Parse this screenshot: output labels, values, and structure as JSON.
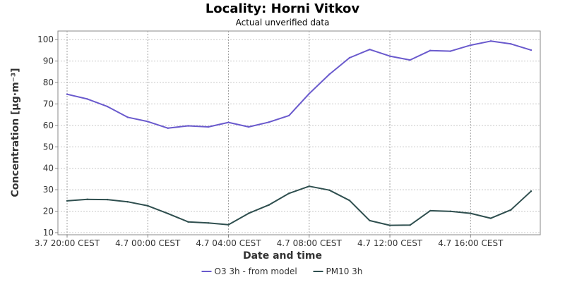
{
  "chart_data": {
    "type": "line",
    "title": "Locality: Horni Vitkov",
    "subtitle": "Actual unverified data",
    "xlabel": "Date and time",
    "ylabel": "Concentration [µg·m⁻³]",
    "ylim": [
      9,
      104
    ],
    "yticks": [
      10,
      20,
      30,
      40,
      50,
      60,
      70,
      80,
      90,
      100
    ],
    "grid": true,
    "legend_position": "bottom",
    "x": [
      "3.7 20:00",
      "3.7 21:00",
      "3.7 22:00",
      "3.7 23:00",
      "4.7 00:00",
      "4.7 01:00",
      "4.7 02:00",
      "4.7 03:00",
      "4.7 04:00",
      "4.7 05:00",
      "4.7 06:00",
      "4.7 07:00",
      "4.7 08:00",
      "4.7 09:00",
      "4.7 10:00",
      "4.7 11:00",
      "4.7 12:00",
      "4.7 13:00",
      "4.7 14:00",
      "4.7 15:00",
      "4.7 16:00",
      "4.7 17:00",
      "4.7 18:00",
      "4.7 19:00"
    ],
    "xticks": [
      {
        "index": 0,
        "label": "3.7 20:00 CEST"
      },
      {
        "index": 4,
        "label": "4.7 00:00 CEST"
      },
      {
        "index": 8,
        "label": "4.7 04:00 CEST"
      },
      {
        "index": 12,
        "label": "4.7 08:00 CEST"
      },
      {
        "index": 16,
        "label": "4.7 12:00 CEST"
      },
      {
        "index": 20,
        "label": "4.7 16:00 CEST"
      }
    ],
    "series": [
      {
        "name": "O3 3h - from model",
        "color": "#6a5acd",
        "values": [
          74.5,
          72.3,
          68.8,
          63.8,
          61.8,
          58.7,
          59.8,
          59.3,
          61.4,
          59.3,
          61.5,
          64.6,
          74.8,
          83.8,
          91.5,
          95.4,
          92.3,
          90.5,
          94.9,
          94.6,
          97.4,
          99.3,
          98.0,
          95.1
        ]
      },
      {
        "name": "PM10 3h",
        "color": "#2f4f4f",
        "values": [
          24.8,
          25.5,
          25.4,
          24.4,
          22.5,
          18.9,
          15.0,
          14.5,
          13.7,
          19.0,
          22.9,
          28.3,
          31.6,
          29.8,
          25.0,
          15.6,
          13.4,
          13.5,
          20.2,
          19.9,
          19.0,
          16.7,
          20.6,
          29.3
        ]
      }
    ]
  }
}
